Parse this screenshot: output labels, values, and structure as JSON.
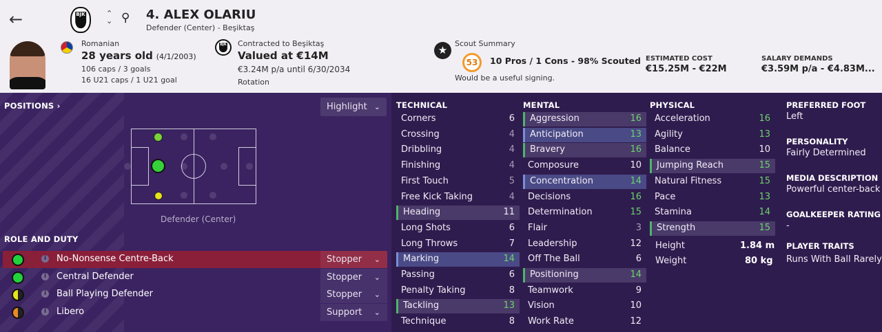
{
  "header": {
    "player_name": "4. ALEX OLARIU",
    "subtitle": "Defender (Center) - Beşiktaş",
    "nationality": "Romanian",
    "age": "28 years old",
    "dob": "(4/1/2003)",
    "caps": "106 caps / 3 goals",
    "u21": "16 U21 caps / 1 U21 goal",
    "contract_label": "Contracted to Beşiktaş",
    "value": "Valued at €14M",
    "wage": "€3.24M p/a until 6/30/2034",
    "contract_status": "Rotation",
    "scout_title": "Scout Summary",
    "scout_value": "53",
    "scout_line": "10 Pros / 1 Cons - 98% Scouted",
    "scout_note": "Would be a useful signing.",
    "est_cost_label": "ESTIMATED COST",
    "est_cost": "€15.25M - €22M",
    "salary_label": "SALARY DEMANDS",
    "salary": "€3.59M p/a - €4.83M...",
    "crest_text": "BJK"
  },
  "positions": {
    "heading": "POSITIONS",
    "heading_arrow": "›",
    "highlight_label": "Highlight",
    "pitch_label": "Defender (Center)"
  },
  "roles": {
    "heading": "ROLE AND DUTY",
    "items": [
      {
        "name": "No-Nonsense Centre-Back",
        "duty": "Stopper",
        "color": "#22d23c",
        "selected": true
      },
      {
        "name": "Central Defender",
        "duty": "Stopper",
        "color": "#22d23c",
        "selected": false
      },
      {
        "name": "Ball Playing Defender",
        "duty": "Stopper",
        "color": "half-yellow",
        "selected": false
      },
      {
        "name": "Libero",
        "duty": "Support",
        "color": "half-orange",
        "selected": false
      }
    ]
  },
  "attributes": {
    "technical": {
      "heading": "TECHNICAL",
      "items": [
        {
          "name": "Corners",
          "value": "6",
          "hl": ""
        },
        {
          "name": "Crossing",
          "value": "4",
          "hl": ""
        },
        {
          "name": "Dribbling",
          "value": "4",
          "hl": ""
        },
        {
          "name": "Finishing",
          "value": "4",
          "hl": ""
        },
        {
          "name": "First Touch",
          "value": "5",
          "hl": ""
        },
        {
          "name": "Free Kick Taking",
          "value": "4",
          "hl": ""
        },
        {
          "name": "Heading",
          "value": "11",
          "hl": "green"
        },
        {
          "name": "Long Shots",
          "value": "6",
          "hl": ""
        },
        {
          "name": "Long Throws",
          "value": "7",
          "hl": ""
        },
        {
          "name": "Marking",
          "value": "14",
          "hl": "blue"
        },
        {
          "name": "Passing",
          "value": "6",
          "hl": ""
        },
        {
          "name": "Penalty Taking",
          "value": "8",
          "hl": ""
        },
        {
          "name": "Tackling",
          "value": "13",
          "hl": "green"
        },
        {
          "name": "Technique",
          "value": "8",
          "hl": ""
        }
      ]
    },
    "mental": {
      "heading": "MENTAL",
      "items": [
        {
          "name": "Aggression",
          "value": "16",
          "hl": "green"
        },
        {
          "name": "Anticipation",
          "value": "13",
          "hl": "blue"
        },
        {
          "name": "Bravery",
          "value": "16",
          "hl": "green"
        },
        {
          "name": "Composure",
          "value": "10",
          "hl": ""
        },
        {
          "name": "Concentration",
          "value": "14",
          "hl": "blue"
        },
        {
          "name": "Decisions",
          "value": "16",
          "hl": ""
        },
        {
          "name": "Determination",
          "value": "15",
          "hl": ""
        },
        {
          "name": "Flair",
          "value": "3",
          "hl": ""
        },
        {
          "name": "Leadership",
          "value": "12",
          "hl": ""
        },
        {
          "name": "Off The Ball",
          "value": "6",
          "hl": ""
        },
        {
          "name": "Positioning",
          "value": "14",
          "hl": "green"
        },
        {
          "name": "Teamwork",
          "value": "9",
          "hl": ""
        },
        {
          "name": "Vision",
          "value": "10",
          "hl": ""
        },
        {
          "name": "Work Rate",
          "value": "12",
          "hl": ""
        }
      ]
    },
    "physical": {
      "heading": "PHYSICAL",
      "items": [
        {
          "name": "Acceleration",
          "value": "16",
          "hl": ""
        },
        {
          "name": "Agility",
          "value": "13",
          "hl": ""
        },
        {
          "name": "Balance",
          "value": "10",
          "hl": ""
        },
        {
          "name": "Jumping Reach",
          "value": "15",
          "hl": "green"
        },
        {
          "name": "Natural Fitness",
          "value": "15",
          "hl": ""
        },
        {
          "name": "Pace",
          "value": "13",
          "hl": ""
        },
        {
          "name": "Stamina",
          "value": "14",
          "hl": ""
        },
        {
          "name": "Strength",
          "value": "15",
          "hl": "green"
        }
      ],
      "height_label": "Height",
      "height": "1.84 m",
      "weight_label": "Weight",
      "weight": "80 kg"
    }
  },
  "info": {
    "foot_label": "PREFERRED FOOT",
    "foot": "Left",
    "personality_label": "PERSONALITY",
    "personality": "Fairly Determined",
    "media_label": "MEDIA DESCRIPTION",
    "media": "Powerful center-back",
    "gk_label": "GOALKEEPER RATING",
    "gk": "-",
    "traits_label": "PLAYER TRAITS",
    "traits": "Runs With Ball Rarely"
  },
  "icons": [
    "back-arrow-icon",
    "sort-arrows-icon",
    "search-icon",
    "club-crest-icon",
    "nation-flag-icon",
    "star-icon",
    "chevron-down-icon",
    "info-icon"
  ]
}
